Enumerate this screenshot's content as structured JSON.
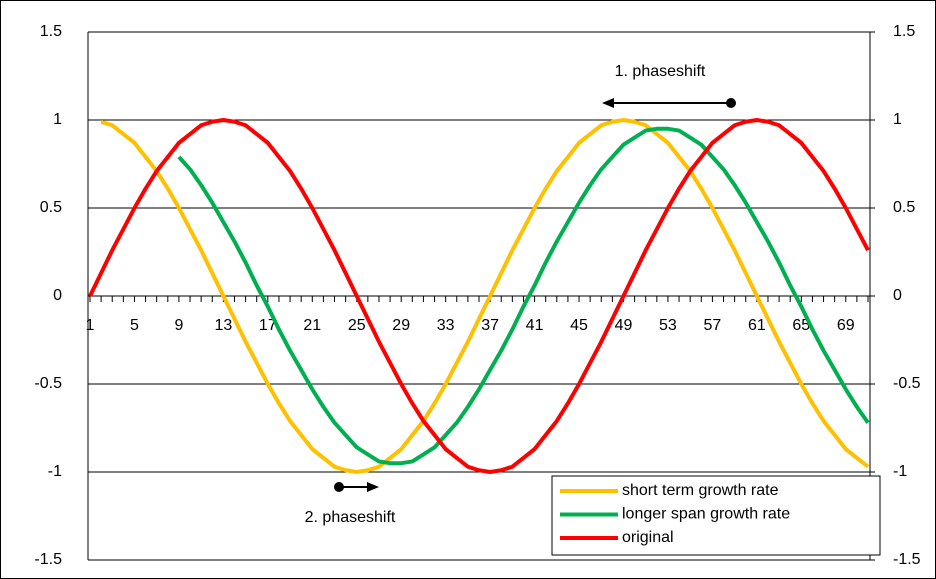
{
  "chart_data": {
    "type": "line",
    "categories": [
      1,
      null,
      null,
      null,
      5,
      null,
      null,
      null,
      9,
      null,
      null,
      null,
      13,
      null,
      null,
      null,
      17,
      null,
      null,
      null,
      21,
      null,
      null,
      null,
      25,
      null,
      null,
      null,
      29,
      null,
      null,
      null,
      33,
      null,
      null,
      null,
      37,
      null,
      null,
      null,
      41,
      null,
      null,
      null,
      45,
      null,
      null,
      null,
      49,
      null,
      null,
      null,
      53,
      null,
      null,
      null,
      57,
      null,
      null,
      null,
      61,
      null,
      null,
      null,
      65,
      null,
      null,
      null,
      69,
      null,
      null
    ],
    "series": [
      {
        "name": "short term growth rate",
        "color": "#FFC000",
        "values": [
          null,
          0.99,
          0.97,
          0.92,
          0.87,
          0.79,
          0.71,
          0.61,
          0.5,
          0.38,
          0.26,
          0.13,
          0,
          -0.13,
          -0.26,
          -0.38,
          -0.5,
          -0.61,
          -0.71,
          -0.79,
          -0.87,
          -0.92,
          -0.97,
          -0.99,
          -1,
          -0.99,
          -0.97,
          -0.92,
          -0.87,
          -0.79,
          -0.71,
          -0.61,
          -0.5,
          -0.38,
          -0.26,
          -0.13,
          0,
          0.13,
          0.26,
          0.38,
          0.5,
          0.61,
          0.71,
          0.79,
          0.87,
          0.92,
          0.97,
          0.99,
          1,
          0.99,
          0.97,
          0.92,
          0.87,
          0.79,
          0.71,
          0.61,
          0.5,
          0.38,
          0.26,
          0.13,
          0,
          -0.13,
          -0.26,
          -0.38,
          -0.5,
          -0.61,
          -0.71,
          -0.79,
          -0.87,
          -0.92,
          -0.97
        ]
      },
      {
        "name": "longer span growth rate",
        "color": "#00B050",
        "values": [
          null,
          null,
          null,
          null,
          null,
          null,
          null,
          null,
          0.79,
          0.72,
          0.63,
          0.53,
          0.42,
          0.31,
          0.19,
          0.06,
          -0.06,
          -0.19,
          -0.31,
          -0.42,
          -0.53,
          -0.63,
          -0.72,
          -0.79,
          -0.86,
          -0.9,
          -0.94,
          -0.95,
          -0.95,
          -0.94,
          -0.9,
          -0.86,
          -0.79,
          -0.72,
          -0.63,
          -0.53,
          -0.42,
          -0.31,
          -0.19,
          -0.06,
          0.06,
          0.19,
          0.31,
          0.42,
          0.53,
          0.63,
          0.72,
          0.79,
          0.86,
          0.9,
          0.94,
          0.95,
          0.95,
          0.94,
          0.9,
          0.86,
          0.79,
          0.72,
          0.63,
          0.53,
          0.42,
          0.31,
          0.19,
          0.06,
          -0.06,
          -0.19,
          -0.31,
          -0.42,
          -0.53,
          -0.63,
          -0.72
        ]
      },
      {
        "name": "original",
        "color": "#FF0000",
        "values": [
          0,
          0.13,
          0.26,
          0.38,
          0.5,
          0.61,
          0.71,
          0.79,
          0.87,
          0.92,
          0.97,
          0.99,
          1,
          0.99,
          0.97,
          0.92,
          0.87,
          0.79,
          0.71,
          0.61,
          0.5,
          0.38,
          0.26,
          0.13,
          0,
          -0.13,
          -0.26,
          -0.38,
          -0.5,
          -0.61,
          -0.71,
          -0.79,
          -0.87,
          -0.92,
          -0.97,
          -0.99,
          -1,
          -0.99,
          -0.97,
          -0.92,
          -0.87,
          -0.79,
          -0.71,
          -0.61,
          -0.5,
          -0.38,
          -0.26,
          -0.13,
          0,
          0.13,
          0.26,
          0.38,
          0.5,
          0.61,
          0.71,
          0.79,
          0.87,
          0.92,
          0.97,
          0.99,
          1,
          0.99,
          0.97,
          0.92,
          0.87,
          0.79,
          0.71,
          0.61,
          0.5,
          0.38,
          0.26
        ]
      }
    ],
    "ylim": [
      -1.5,
      1.5
    ],
    "yticks": [
      -1.5,
      -1,
      -0.5,
      0,
      0.5,
      1,
      1.5
    ],
    "y2lim": [
      -1.5,
      1.5
    ],
    "y2ticks": [
      -1.5,
      -1,
      -0.5,
      0,
      0.5,
      1,
      1.5
    ],
    "grid": true,
    "annotations": [
      {
        "text": "1. phaseshift"
      },
      {
        "text": "2. phaseshift"
      }
    ],
    "legend": "bottom-right"
  }
}
